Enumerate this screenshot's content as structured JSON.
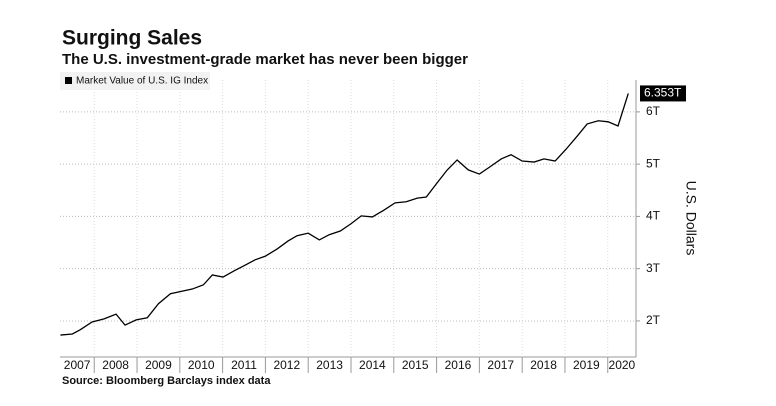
{
  "chart_data": {
    "type": "line",
    "title": "Surging Sales",
    "subtitle": "The U.S. investment-grade market has never been bigger",
    "y_label": "U.S. Dollars",
    "source": "Source: Bloomberg Barclays index data",
    "x": [
      2007.21,
      2007.49,
      2007.67,
      2007.95,
      2008.23,
      2008.51,
      2008.72,
      2008.98,
      2009.24,
      2009.5,
      2009.78,
      2010.06,
      2010.29,
      2010.55,
      2010.76,
      2011.01,
      2011.27,
      2011.53,
      2011.76,
      2012.0,
      2012.28,
      2012.53,
      2012.74,
      2013.0,
      2013.26,
      2013.49,
      2013.75,
      2014.0,
      2014.24,
      2014.5,
      2014.75,
      2015.03,
      2015.29,
      2015.55,
      2015.76,
      2016.01,
      2016.25,
      2016.48,
      2016.74,
      2017.0,
      2017.25,
      2017.51,
      2017.74,
      2018.0,
      2018.28,
      2018.51,
      2018.77,
      2019.03,
      2019.29,
      2019.52,
      2019.78,
      2020.01,
      2020.24,
      2020.48
    ],
    "series": [
      {
        "name": "Market Value of U.S. IG Index",
        "color": "#000000",
        "values": [
          1.73,
          1.75,
          1.83,
          1.98,
          2.04,
          2.13,
          1.92,
          2.02,
          2.06,
          2.33,
          2.52,
          2.57,
          2.61,
          2.69,
          2.88,
          2.84,
          2.96,
          3.07,
          3.17,
          3.24,
          3.38,
          3.53,
          3.63,
          3.68,
          3.55,
          3.65,
          3.72,
          3.86,
          4.01,
          3.99,
          4.11,
          4.26,
          4.28,
          4.35,
          4.37,
          4.64,
          4.89,
          5.08,
          4.89,
          4.81,
          4.95,
          5.1,
          5.18,
          5.06,
          5.04,
          5.1,
          5.06,
          5.29,
          5.54,
          5.77,
          5.83,
          5.81,
          5.73,
          6.353
        ],
        "value_labels": [
          null,
          null,
          null,
          null,
          null,
          null,
          null,
          null,
          null,
          null,
          null,
          null,
          null,
          null,
          null,
          null,
          null,
          null,
          null,
          null,
          null,
          null,
          null,
          null,
          null,
          null,
          null,
          null,
          null,
          null,
          null,
          null,
          null,
          null,
          null,
          null,
          null,
          null,
          null,
          null,
          null,
          null,
          null,
          null,
          null,
          null,
          null,
          null,
          null,
          null,
          null,
          null,
          null,
          "6.353T"
        ]
      }
    ],
    "xlim": [
      2007.2,
      2020.66
    ],
    "xticks": [
      2007,
      2008,
      2009,
      2010,
      2011,
      2012,
      2013,
      2014,
      2015,
      2016,
      2017,
      2018,
      2019,
      2020
    ],
    "ylim": [
      1.31,
      6.61
    ],
    "yticks": [
      {
        "value": 2,
        "label": "2T"
      },
      {
        "value": 3,
        "label": "3T"
      },
      {
        "value": 4,
        "label": "4T"
      },
      {
        "value": 5,
        "label": "5T"
      },
      {
        "value": 6,
        "label": "6T"
      }
    ],
    "grid": true,
    "legend": "top-left"
  }
}
